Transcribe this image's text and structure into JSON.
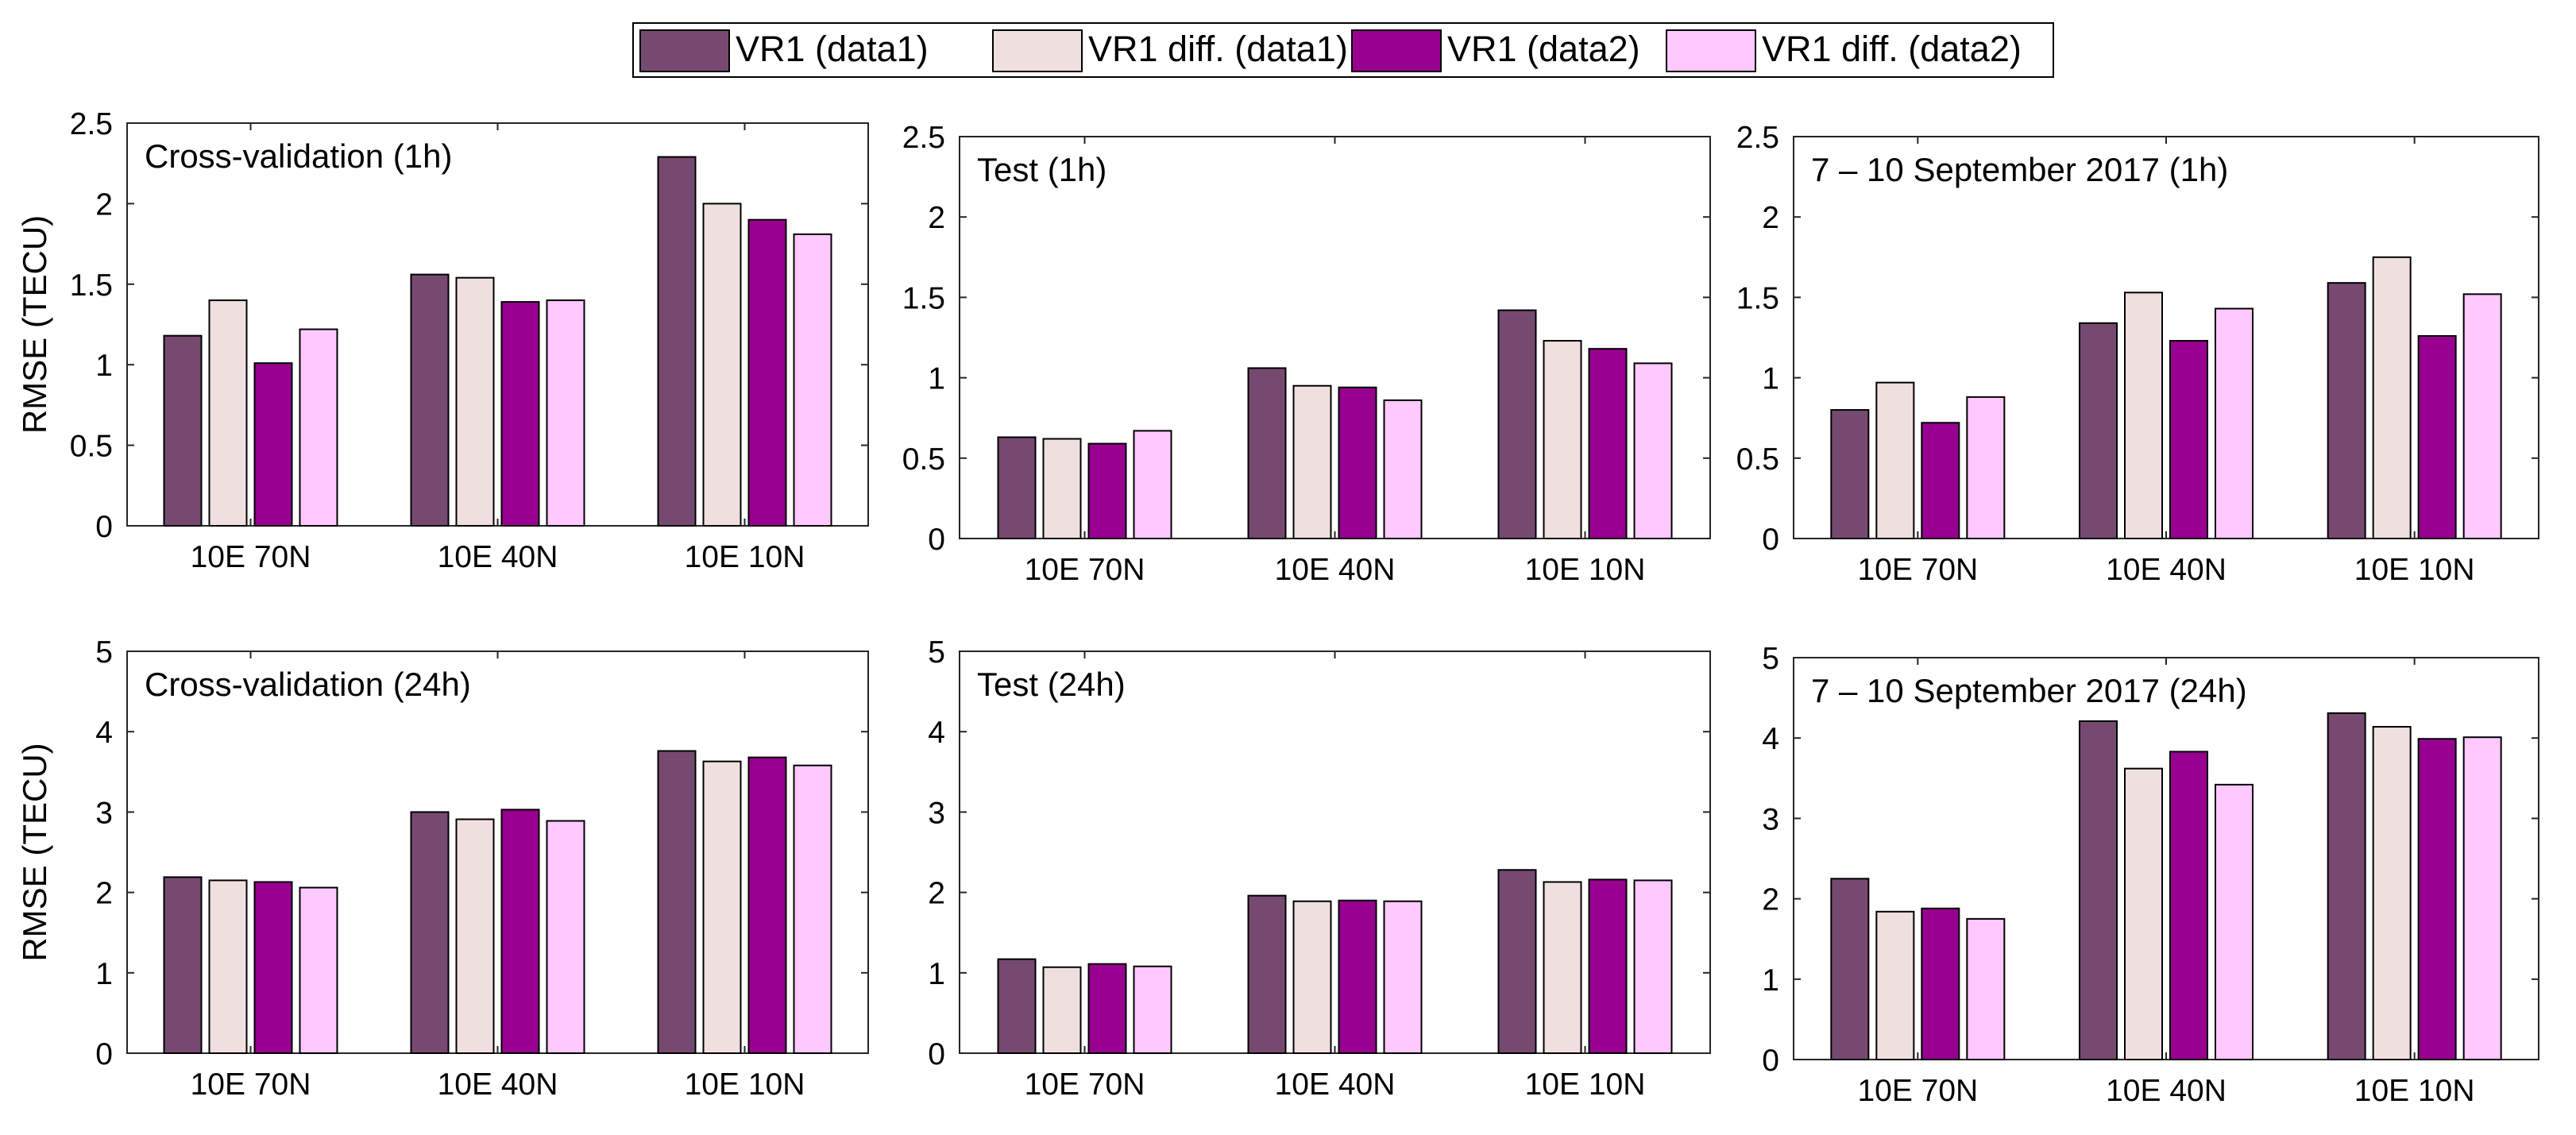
{
  "colors": {
    "s1": "#764a70",
    "s2": "#efdfdf",
    "s3": "#98008f",
    "s4": "#ffc8ff"
  },
  "legend_labels": [
    "VR1 (data1)",
    "VR1 diff. (data1)",
    "VR1 (data2)",
    "VR1 diff. (data2)"
  ],
  "chart_data": [
    {
      "type": "bar",
      "title": "Cross-validation (1h)",
      "ylabel": "RMSE (TECU)",
      "ylim": [
        0,
        2.5
      ],
      "yticks": [
        0,
        0.5,
        1,
        1.5,
        2,
        2.5
      ],
      "ytick_labels": [
        "0",
        "0.5",
        "1",
        "1.5",
        "2",
        "2.5"
      ],
      "categories": [
        "10E 70N",
        "10E 40N",
        "10E 10N"
      ],
      "series": [
        {
          "name": "VR1 (data1)",
          "values": [
            1.18,
            1.56,
            2.29
          ]
        },
        {
          "name": "VR1 diff. (data1)",
          "values": [
            1.4,
            1.54,
            2.0
          ]
        },
        {
          "name": "VR1 (data2)",
          "values": [
            1.01,
            1.39,
            1.9
          ]
        },
        {
          "name": "VR1 diff. (data2)",
          "values": [
            1.22,
            1.4,
            1.81
          ]
        }
      ]
    },
    {
      "type": "bar",
      "title": "Test (1h)",
      "ylabel": "",
      "ylim": [
        0,
        2.5
      ],
      "yticks": [
        0,
        0.5,
        1,
        1.5,
        2,
        2.5
      ],
      "ytick_labels": [
        "0",
        "0.5",
        "1",
        "1.5",
        "2",
        "2.5"
      ],
      "categories": [
        "10E 70N",
        "10E 40N",
        "10E 10N"
      ],
      "series": [
        {
          "name": "VR1 (data1)",
          "values": [
            0.63,
            1.06,
            1.42
          ]
        },
        {
          "name": "VR1 diff. (data1)",
          "values": [
            0.62,
            0.95,
            1.23
          ]
        },
        {
          "name": "VR1 (data2)",
          "values": [
            0.59,
            0.94,
            1.18
          ]
        },
        {
          "name": "VR1 diff. (data2)",
          "values": [
            0.67,
            0.86,
            1.09
          ]
        }
      ]
    },
    {
      "type": "bar",
      "title": "7 – 10 September 2017 (1h)",
      "ylabel": "",
      "ylim": [
        0,
        2.5
      ],
      "yticks": [
        0,
        0.5,
        1,
        1.5,
        2,
        2.5
      ],
      "ytick_labels": [
        "0",
        "0.5",
        "1",
        "1.5",
        "2",
        "2.5"
      ],
      "categories": [
        "10E 70N",
        "10E 40N",
        "10E 10N"
      ],
      "series": [
        {
          "name": "VR1 (data1)",
          "values": [
            0.8,
            1.34,
            1.59
          ]
        },
        {
          "name": "VR1 diff. (data1)",
          "values": [
            0.97,
            1.53,
            1.75
          ]
        },
        {
          "name": "VR1 (data2)",
          "values": [
            0.72,
            1.23,
            1.26
          ]
        },
        {
          "name": "VR1 diff. (data2)",
          "values": [
            0.88,
            1.43,
            1.52
          ]
        }
      ]
    },
    {
      "type": "bar",
      "title": "Cross-validation (24h)",
      "ylabel": "RMSE (TECU)",
      "ylim": [
        0,
        5
      ],
      "yticks": [
        0,
        1,
        2,
        3,
        4,
        5
      ],
      "ytick_labels": [
        "0",
        "1",
        "2",
        "3",
        "4",
        "5"
      ],
      "categories": [
        "10E 70N",
        "10E 40N",
        "10E 10N"
      ],
      "series": [
        {
          "name": "VR1 (data1)",
          "values": [
            2.19,
            3.0,
            3.76
          ]
        },
        {
          "name": "VR1 diff. (data1)",
          "values": [
            2.15,
            2.91,
            3.63
          ]
        },
        {
          "name": "VR1 (data2)",
          "values": [
            2.13,
            3.03,
            3.68
          ]
        },
        {
          "name": "VR1 diff. (data2)",
          "values": [
            2.06,
            2.89,
            3.58
          ]
        }
      ]
    },
    {
      "type": "bar",
      "title": "Test (24h)",
      "ylabel": "",
      "ylim": [
        0,
        5
      ],
      "yticks": [
        0,
        1,
        2,
        3,
        4,
        5
      ],
      "ytick_labels": [
        "0",
        "1",
        "2",
        "3",
        "4",
        "5"
      ],
      "categories": [
        "10E 70N",
        "10E 40N",
        "10E 10N"
      ],
      "series": [
        {
          "name": "VR1 (data1)",
          "values": [
            1.17,
            1.96,
            2.28
          ]
        },
        {
          "name": "VR1 diff. (data1)",
          "values": [
            1.07,
            1.89,
            2.13
          ]
        },
        {
          "name": "VR1 (data2)",
          "values": [
            1.11,
            1.9,
            2.16
          ]
        },
        {
          "name": "VR1 diff. (data2)",
          "values": [
            1.08,
            1.89,
            2.15
          ]
        }
      ]
    },
    {
      "type": "bar",
      "title": "7 – 10 September 2017 (24h)",
      "ylabel": "",
      "ylim": [
        0,
        5
      ],
      "yticks": [
        0,
        1,
        2,
        3,
        4,
        5
      ],
      "ytick_labels": [
        "0",
        "1",
        "2",
        "3",
        "4",
        "5"
      ],
      "categories": [
        "10E 70N",
        "10E 40N",
        "10E 10N"
      ],
      "series": [
        {
          "name": "VR1 (data1)",
          "values": [
            2.25,
            4.21,
            4.31
          ]
        },
        {
          "name": "VR1 diff. (data1)",
          "values": [
            1.84,
            3.62,
            4.14
          ]
        },
        {
          "name": "VR1 (data2)",
          "values": [
            1.88,
            3.83,
            3.99
          ]
        },
        {
          "name": "VR1 diff. (data2)",
          "values": [
            1.75,
            3.42,
            4.01
          ]
        }
      ]
    }
  ]
}
